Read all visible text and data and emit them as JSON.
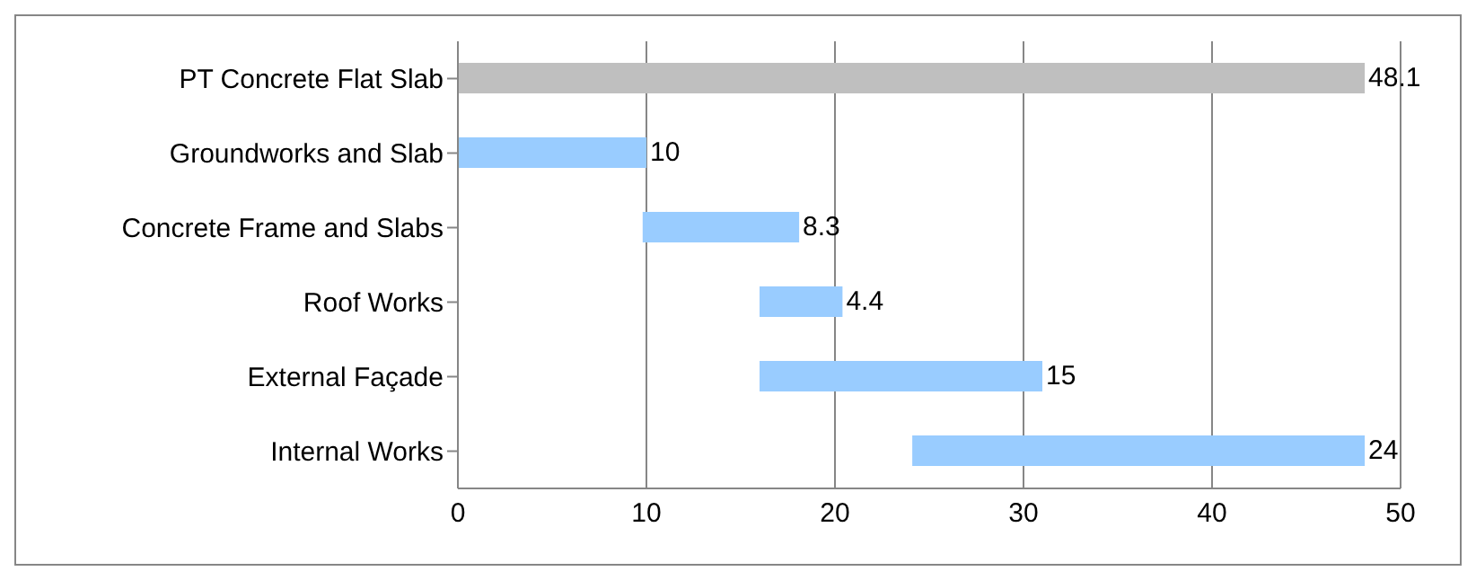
{
  "chart_data": {
    "type": "bar",
    "orientation": "horizontal",
    "categories": [
      "PT Concrete Flat Slab",
      "Groundworks and Slab",
      "Concrete Frame and Slabs",
      "Roof Works",
      "External Façade",
      "Internal Works"
    ],
    "values": [
      48.1,
      10,
      8.3,
      4.4,
      15,
      24
    ],
    "base": [
      0,
      0,
      9.8,
      16,
      16,
      24.1
    ],
    "colors": [
      "#bfbfbf",
      "#99ccff",
      "#99ccff",
      "#99ccff",
      "#99ccff",
      "#99ccff"
    ],
    "xlim": [
      0,
      50
    ],
    "xticks": [
      0,
      10,
      20,
      30,
      40,
      50
    ],
    "grid": "x",
    "data_labels": true,
    "legend": false
  }
}
